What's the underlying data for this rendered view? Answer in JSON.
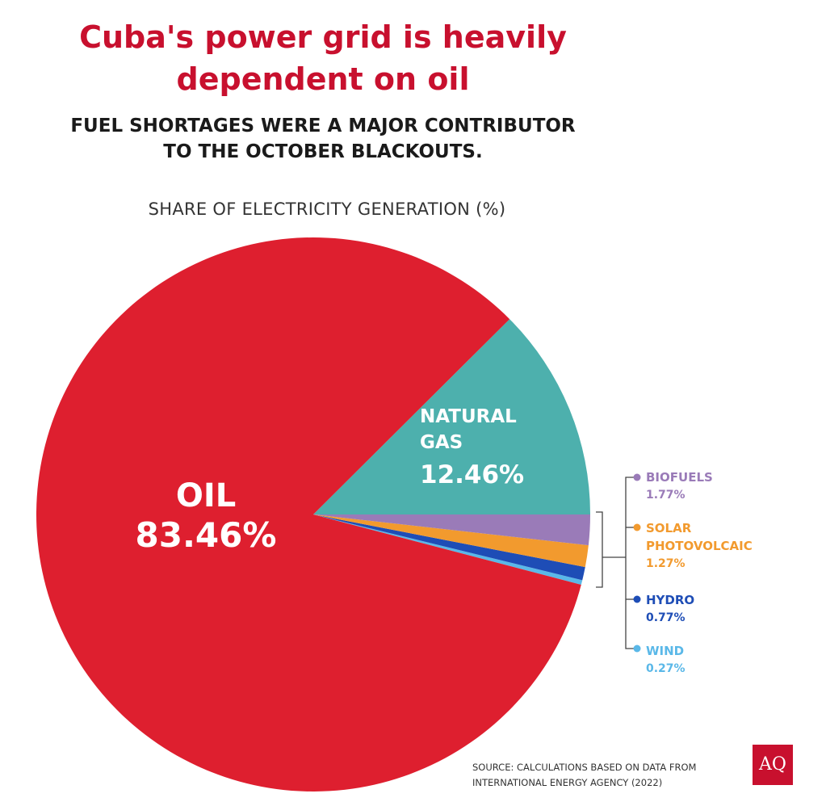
{
  "header": {
    "title": "Cuba's power grid is heavily\ndependent on oil",
    "subtitle": "FUEL SHORTAGES WERE A MAJOR CONTRIBUTOR\nTO THE OCTOBER BLACKOUTS."
  },
  "chart_data": {
    "type": "pie",
    "title": "SHARE OF ELECTRICITY GENERATION (%)",
    "slices": [
      {
        "name": "OIL",
        "value": 83.46,
        "label": "83.46%",
        "color": "#de1f2f"
      },
      {
        "name": "NATURAL\nGAS",
        "value": 12.46,
        "label": "12.46%",
        "color": "#4db0ad"
      },
      {
        "name": "BIOFUELS",
        "value": 1.77,
        "label": "1.77%",
        "color": "#9a7bb8"
      },
      {
        "name": "SOLAR\nPHOTOVOLCAIC",
        "value": 1.27,
        "label": "1.27%",
        "color": "#f29a2e"
      },
      {
        "name": "HYDRO",
        "value": 0.77,
        "label": "0.77%",
        "color": "#1e4db6"
      },
      {
        "name": "WIND",
        "value": 0.27,
        "label": "0.27%",
        "color": "#5ab8e8"
      }
    ]
  },
  "source": "SOURCE: CALCULATIONS BASED ON DATA FROM\nINTERNATIONAL ENERGY AGENCY (2022)",
  "logo_text": "AQ"
}
